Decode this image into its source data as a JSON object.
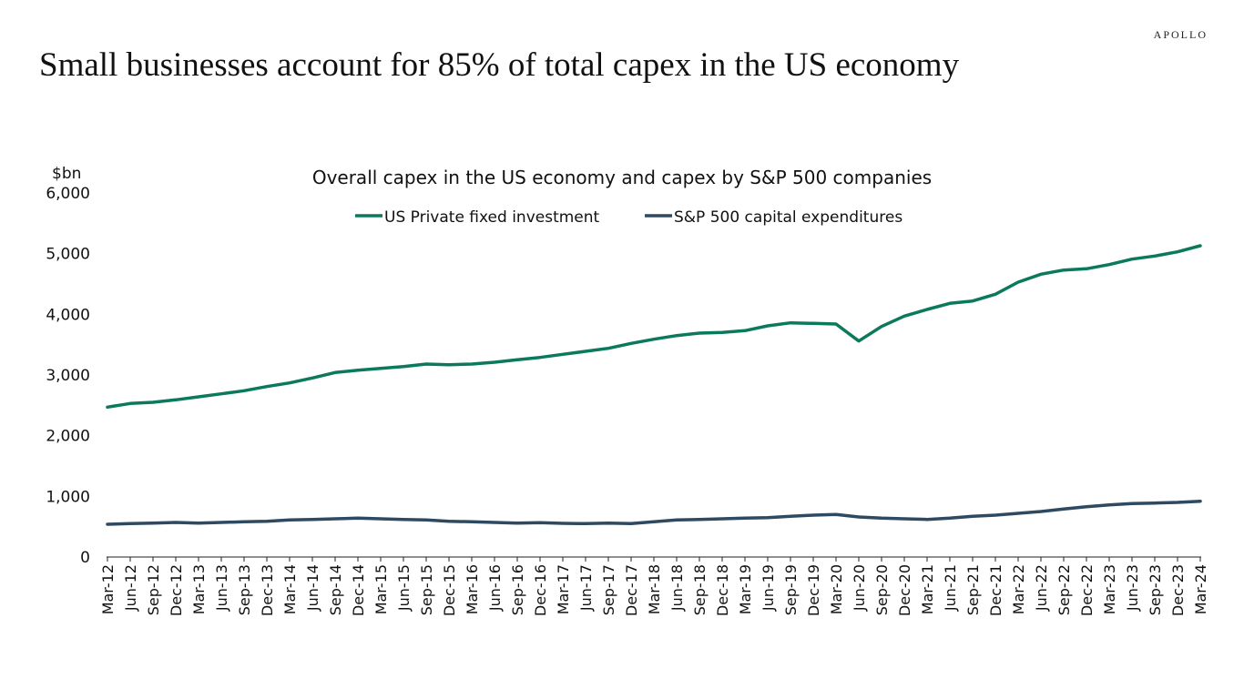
{
  "brand": "APOLLO",
  "headline": "Small businesses account for 85% of  total capex in the US economy",
  "chart_data": {
    "type": "line",
    "title": "Overall capex in the US economy and capex by S&P 500 companies",
    "ylabel": "$bn",
    "xlabel": "",
    "ylim": [
      0,
      6000
    ],
    "yticks": [
      0,
      1000,
      2000,
      3000,
      4000,
      5000,
      6000
    ],
    "ytick_labels": [
      "0",
      "1,000",
      "2,000",
      "3,000",
      "4,000",
      "5,000",
      "6,000"
    ],
    "legend_position": "top-center",
    "grid": false,
    "categories": [
      "Mar-12",
      "Jun-12",
      "Sep-12",
      "Dec-12",
      "Mar-13",
      "Jun-13",
      "Sep-13",
      "Dec-13",
      "Mar-14",
      "Jun-14",
      "Sep-14",
      "Dec-14",
      "Mar-15",
      "Jun-15",
      "Sep-15",
      "Dec-15",
      "Mar-16",
      "Jun-16",
      "Sep-16",
      "Dec-16",
      "Mar-17",
      "Jun-17",
      "Sep-17",
      "Dec-17",
      "Mar-18",
      "Jun-18",
      "Sep-18",
      "Dec-18",
      "Mar-19",
      "Jun-19",
      "Sep-19",
      "Dec-19",
      "Mar-20",
      "Jun-20",
      "Sep-20",
      "Dec-20",
      "Mar-21",
      "Jun-21",
      "Sep-21",
      "Dec-21",
      "Mar-22",
      "Jun-22",
      "Sep-22",
      "Dec-22",
      "Mar-23",
      "Jun-23",
      "Sep-23",
      "Dec-23",
      "Mar-24"
    ],
    "series": [
      {
        "name": "US Private fixed investment",
        "color": "#0b7a5c",
        "values": [
          2470,
          2530,
          2550,
          2590,
          2640,
          2690,
          2740,
          2810,
          2870,
          2950,
          3040,
          3080,
          3110,
          3140,
          3180,
          3170,
          3180,
          3210,
          3250,
          3290,
          3340,
          3390,
          3440,
          3520,
          3590,
          3650,
          3690,
          3700,
          3730,
          3810,
          3860,
          3850,
          3840,
          3560,
          3800,
          3970,
          4080,
          4180,
          4220,
          4330,
          4530,
          4660,
          4730,
          4750,
          4820,
          4910,
          4960,
          5030,
          5130
        ]
      },
      {
        "name": "S&P 500 capital expenditures",
        "color": "#2e4a62",
        "values": [
          540,
          550,
          560,
          570,
          560,
          570,
          580,
          590,
          610,
          620,
          630,
          640,
          630,
          620,
          610,
          590,
          580,
          570,
          560,
          565,
          555,
          550,
          560,
          550,
          580,
          610,
          620,
          630,
          640,
          650,
          670,
          690,
          700,
          660,
          640,
          630,
          620,
          640,
          670,
          690,
          720,
          750,
          790,
          830,
          860,
          880,
          890,
          900,
          920
        ]
      }
    ]
  }
}
